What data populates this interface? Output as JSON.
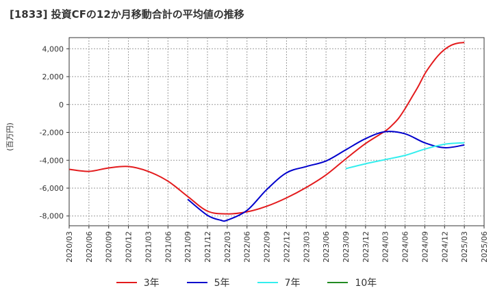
{
  "chart_data": {
    "type": "line",
    "title": "[1833]  投資CFの12か月移動合計の平均値の推移",
    "ylabel": "(百万円)",
    "xlabel": "",
    "ylim": [
      -8700,
      4800
    ],
    "yticks": [
      4000,
      2000,
      0,
      -2000,
      -4000,
      -6000,
      -8000
    ],
    "ytick_labels": [
      "4,000",
      "2,000",
      "0",
      "-2,000",
      "-4,000",
      "-6,000",
      "-8,000"
    ],
    "x_tick_labels": [
      "2020/03",
      "2020/06",
      "2020/09",
      "2020/12",
      "2021/03",
      "2021/06",
      "2021/09",
      "2021/12",
      "2022/03",
      "2022/06",
      "2022/09",
      "2022/12",
      "2023/03",
      "2023/06",
      "2023/09",
      "2023/12",
      "2024/03",
      "2024/06",
      "2024/09",
      "2024/12",
      "2025/03",
      "2025/06"
    ],
    "grid": true,
    "legend_position": "bottom",
    "series": [
      {
        "name": "3年",
        "color": "#e31a1c",
        "x": [
          "2020/03",
          "2020/06",
          "2020/09",
          "2020/12",
          "2021/03",
          "2021/06",
          "2021/09",
          "2021/12",
          "2022/03",
          "2022/06",
          "2022/09",
          "2022/12",
          "2023/03",
          "2023/06",
          "2023/09",
          "2023/12",
          "2024/03",
          "2024/04",
          "2024/05",
          "2024/06",
          "2024/07",
          "2024/08",
          "2024/09",
          "2024/10",
          "2024/11",
          "2024/12",
          "2025/01",
          "2025/02",
          "2025/03"
        ],
        "values": [
          -4650,
          -4800,
          -4550,
          -4450,
          -4800,
          -5500,
          -6600,
          -7650,
          -7850,
          -7700,
          -7300,
          -6700,
          -5950,
          -5050,
          -3900,
          -2800,
          -1900,
          -1500,
          -1000,
          -300,
          500,
          1300,
          2200,
          2900,
          3500,
          3950,
          4250,
          4400,
          4450
        ]
      },
      {
        "name": "5年",
        "color": "#0000cc",
        "x": [
          "2021/09",
          "2021/12",
          "2022/02",
          "2022/03",
          "2022/06",
          "2022/09",
          "2022/12",
          "2023/03",
          "2023/06",
          "2023/09",
          "2023/12",
          "2024/03",
          "2024/06",
          "2024/09",
          "2024/12",
          "2025/03"
        ],
        "values": [
          -6800,
          -7950,
          -8300,
          -8300,
          -7600,
          -6100,
          -4900,
          -4450,
          -4050,
          -3250,
          -2450,
          -1950,
          -2100,
          -2750,
          -3100,
          -2900
        ]
      },
      {
        "name": "7年",
        "color": "#33eeee",
        "x": [
          "2023/09",
          "2023/12",
          "2024/03",
          "2024/06",
          "2024/09",
          "2024/12",
          "2025/03"
        ],
        "values": [
          -4600,
          -4250,
          -3950,
          -3650,
          -3200,
          -2850,
          -2750
        ]
      },
      {
        "name": "10年",
        "color": "#228b22",
        "x": [],
        "values": []
      }
    ]
  }
}
